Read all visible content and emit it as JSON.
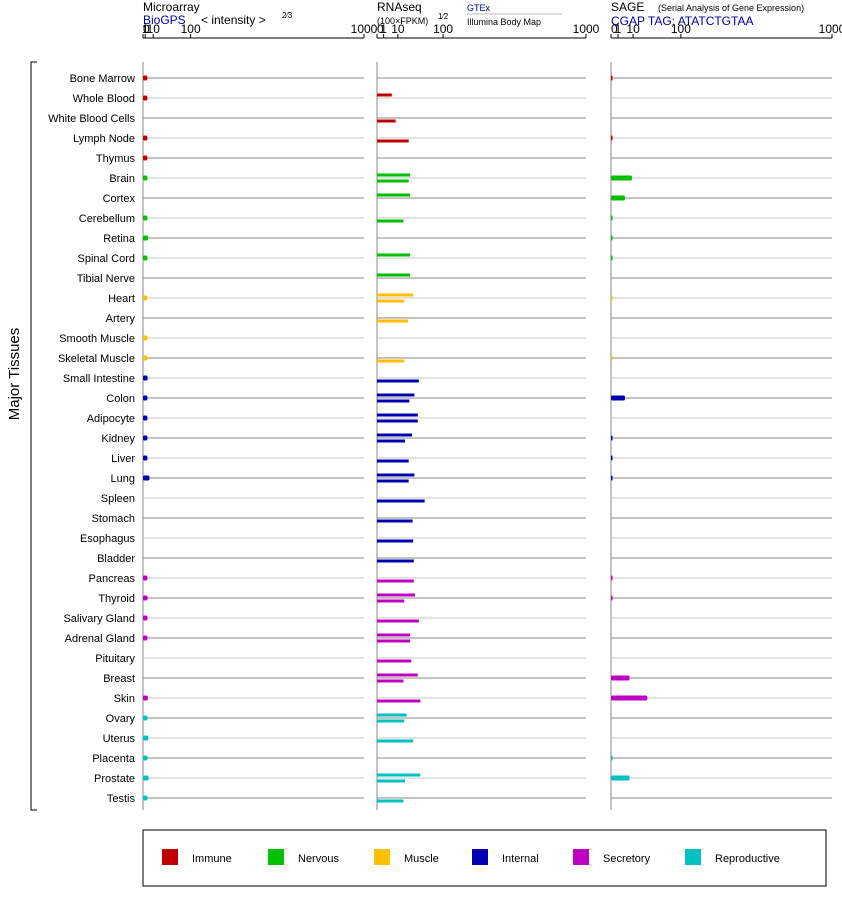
{
  "axis_title": "Major Tissues",
  "panels": [
    {
      "title": "Microarray",
      "subtitle": "BioGPS",
      "subtitle_extra": "< intensity >",
      "exponent": "2⁄3",
      "ticks": [
        "0",
        "1",
        "10",
        "100",
        "1000"
      ]
    },
    {
      "title": "RNAseq",
      "subtitle": "(100×FPKM)",
      "exponent": "1⁄2",
      "link_top": "GTEx",
      "link_bottom": "Illumina Body Map",
      "ticks": [
        "0",
        "1",
        "10",
        "100",
        "1000"
      ]
    },
    {
      "title": "SAGE",
      "title_extra": "(Serial Analysis of Gene Expression)",
      "subtitle": "CGAP TAG: ATATCTGTAA",
      "ticks": [
        "0",
        "1",
        "10",
        "100",
        "1000"
      ]
    }
  ],
  "legend": [
    {
      "label": "Immune",
      "color": "#c00000"
    },
    {
      "label": "Nervous",
      "color": "#00c000"
    },
    {
      "label": "Muscle",
      "color": "#ffc000"
    },
    {
      "label": "Internal",
      "color": "#0000b0"
    },
    {
      "label": "Secretory",
      "color": "#c000c0"
    },
    {
      "label": "Reproductive",
      "color": "#00c0c0"
    }
  ],
  "chart_data": {
    "type": "bar",
    "orientation": "horizontal",
    "scale": "x^(2/3) microarray, x^(1/2) RNAseq/SAGE",
    "xlim": [
      0,
      1000
    ],
    "categories": [
      "Bone Marrow",
      "Whole Blood",
      "White Blood Cells",
      "Lymph Node",
      "Thymus",
      "Brain",
      "Cortex",
      "Cerebellum",
      "Retina",
      "Spinal Cord",
      "Tibial Nerve",
      "Heart",
      "Artery",
      "Smooth Muscle",
      "Skeletal Muscle",
      "Small Intestine",
      "Colon",
      "Adipocyte",
      "Kidney",
      "Liver",
      "Lung",
      "Spleen",
      "Stomach",
      "Esophagus",
      "Bladder",
      "Pancreas",
      "Thyroid",
      "Salivary Gland",
      "Adrenal Gland",
      "Pituitary",
      "Breast",
      "Skin",
      "Ovary",
      "Uterus",
      "Placenta",
      "Prostate",
      "Testis"
    ],
    "groups": [
      "Immune",
      "Immune",
      "Immune",
      "Immune",
      "Immune",
      "Nervous",
      "Nervous",
      "Nervous",
      "Nervous",
      "Nervous",
      "Nervous",
      "Muscle",
      "Muscle",
      "Muscle",
      "Muscle",
      "Internal",
      "Internal",
      "Internal",
      "Internal",
      "Internal",
      "Internal",
      "Internal",
      "Internal",
      "Internal",
      "Internal",
      "Secretory",
      "Secretory",
      "Secretory",
      "Secretory",
      "Secretory",
      "Secretory",
      "Secretory",
      "Reproductive",
      "Reproductive",
      "Reproductive",
      "Reproductive",
      "Reproductive"
    ],
    "series": [
      {
        "name": "Microarray",
        "values": [
          2.8,
          2.8,
          null,
          2.8,
          2.8,
          2.8,
          null,
          2.8,
          3.5,
          2.8,
          null,
          2.5,
          null,
          2.8,
          2.8,
          3.0,
          2.8,
          2.8,
          2.8,
          2.8,
          5.0,
          null,
          null,
          null,
          null,
          2.8,
          3.0,
          2.9,
          2.8,
          null,
          null,
          3.2,
          2.8,
          3.7,
          2.9,
          4.0,
          2.8
        ]
      },
      {
        "name": "GTEx",
        "values": [
          null,
          5,
          null,
          null,
          null,
          25,
          25,
          null,
          null,
          25,
          25,
          30,
          null,
          null,
          null,
          null,
          32,
          38,
          28,
          null,
          32,
          null,
          null,
          null,
          null,
          null,
          33,
          null,
          25,
          null,
          38,
          null,
          20,
          null,
          null,
          43,
          null
        ]
      },
      {
        "name": "Illumina Body Map",
        "values": [
          null,
          null,
          8,
          23,
          null,
          23,
          null,
          16,
          null,
          null,
          null,
          17,
          22,
          null,
          17,
          40,
          24,
          38,
          18,
          23,
          23,
          52,
          29,
          30,
          31,
          31,
          17,
          40,
          25,
          27,
          16,
          43,
          17,
          30,
          null,
          18,
          16
        ]
      },
      {
        "name": "SAGE",
        "values": [
          0.05,
          null,
          null,
          0.05,
          null,
          9,
          4,
          0.05,
          0.05,
          0.05,
          null,
          0.05,
          null,
          null,
          0.05,
          null,
          4,
          null,
          0.05,
          0.05,
          0.05,
          null,
          null,
          null,
          null,
          0.05,
          0.05,
          null,
          null,
          null,
          7,
          27,
          null,
          null,
          0.05,
          7,
          null
        ]
      }
    ]
  }
}
